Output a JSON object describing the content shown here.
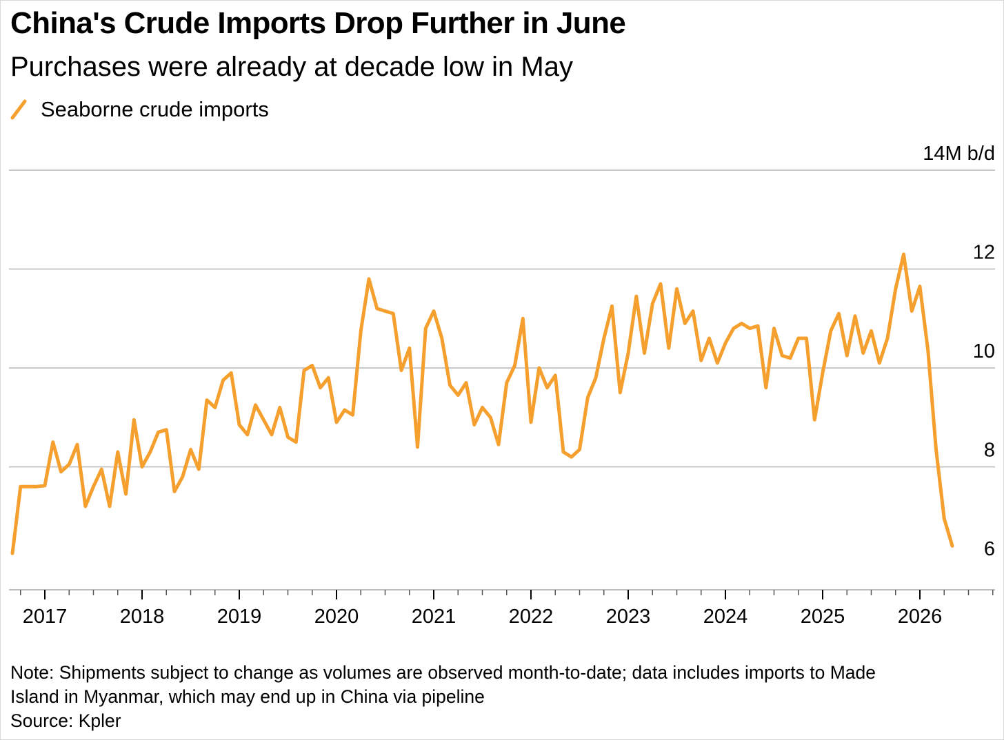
{
  "chart_data": {
    "type": "line",
    "title": "China's Crude Imports Drop Further in June",
    "subtitle": "Purchases were already at decade low in May",
    "unit_label": "14M b/d",
    "ylim": [
      5.7,
      14
    ],
    "yticks": [
      6,
      8,
      10,
      12,
      14
    ],
    "ytick_labels": [
      "6",
      "8",
      "10",
      "12",
      "14M b/d"
    ],
    "xticks": [
      "2017",
      "2018",
      "2019",
      "2020",
      "2021",
      "2022",
      "2023",
      "2024",
      "2025",
      "2026"
    ],
    "grid": true,
    "legend_placement": "top-left",
    "series": [
      {
        "name": "Seaborne crude imports",
        "color": "#f5a02e",
        "points": [
          [
            "2016-09",
            6.25
          ],
          [
            "2016-10",
            7.6
          ],
          [
            "2016-11",
            7.6
          ],
          [
            "2016-12",
            7.6
          ],
          [
            "2017-01",
            7.62
          ],
          [
            "2017-02",
            8.5
          ],
          [
            "2017-03",
            7.9
          ],
          [
            "2017-04",
            8.05
          ],
          [
            "2017-05",
            8.45
          ],
          [
            "2017-06",
            7.2
          ],
          [
            "2017-07",
            7.6
          ],
          [
            "2017-08",
            7.95
          ],
          [
            "2017-09",
            7.2
          ],
          [
            "2017-10",
            8.3
          ],
          [
            "2017-11",
            7.45
          ],
          [
            "2017-12",
            8.95
          ],
          [
            "2018-01",
            8.0
          ],
          [
            "2018-02",
            8.3
          ],
          [
            "2018-03",
            8.7
          ],
          [
            "2018-04",
            8.75
          ],
          [
            "2018-05",
            7.5
          ],
          [
            "2018-06",
            7.8
          ],
          [
            "2018-07",
            8.35
          ],
          [
            "2018-08",
            7.95
          ],
          [
            "2018-09",
            9.35
          ],
          [
            "2018-10",
            9.2
          ],
          [
            "2018-11",
            9.75
          ],
          [
            "2018-12",
            9.9
          ],
          [
            "2019-01",
            8.85
          ],
          [
            "2019-02",
            8.65
          ],
          [
            "2019-03",
            9.25
          ],
          [
            "2019-04",
            8.95
          ],
          [
            "2019-05",
            8.65
          ],
          [
            "2019-06",
            9.2
          ],
          [
            "2019-07",
            8.6
          ],
          [
            "2019-08",
            8.5
          ],
          [
            "2019-09",
            9.95
          ],
          [
            "2019-10",
            10.05
          ],
          [
            "2019-11",
            9.6
          ],
          [
            "2019-12",
            9.8
          ],
          [
            "2020-01",
            8.9
          ],
          [
            "2020-02",
            9.15
          ],
          [
            "2020-03",
            9.05
          ],
          [
            "2020-04",
            10.75
          ],
          [
            "2020-05",
            11.8
          ],
          [
            "2020-06",
            11.2
          ],
          [
            "2020-07",
            11.15
          ],
          [
            "2020-08",
            11.1
          ],
          [
            "2020-09",
            9.95
          ],
          [
            "2020-10",
            10.4
          ],
          [
            "2020-11",
            8.4
          ],
          [
            "2020-12",
            10.8
          ],
          [
            "2021-01",
            11.15
          ],
          [
            "2021-02",
            10.6
          ],
          [
            "2021-03",
            9.65
          ],
          [
            "2021-04",
            9.45
          ],
          [
            "2021-05",
            9.7
          ],
          [
            "2021-06",
            8.85
          ],
          [
            "2021-07",
            9.2
          ],
          [
            "2021-08",
            9.0
          ],
          [
            "2021-09",
            8.45
          ],
          [
            "2021-10",
            9.7
          ],
          [
            "2021-11",
            10.05
          ],
          [
            "2021-12",
            11.0
          ],
          [
            "2022-01",
            8.9
          ],
          [
            "2022-02",
            10.0
          ],
          [
            "2022-03",
            9.6
          ],
          [
            "2022-04",
            9.85
          ],
          [
            "2022-05",
            8.3
          ],
          [
            "2022-06",
            8.2
          ],
          [
            "2022-07",
            8.35
          ],
          [
            "2022-08",
            9.4
          ],
          [
            "2022-09",
            9.8
          ],
          [
            "2022-10",
            10.6
          ],
          [
            "2022-11",
            11.25
          ],
          [
            "2022-12",
            9.5
          ],
          [
            "2023-01",
            10.3
          ],
          [
            "2023-02",
            11.45
          ],
          [
            "2023-03",
            10.3
          ],
          [
            "2023-04",
            11.3
          ],
          [
            "2023-05",
            11.7
          ],
          [
            "2023-06",
            10.4
          ],
          [
            "2023-07",
            11.6
          ],
          [
            "2023-08",
            10.9
          ],
          [
            "2023-09",
            11.15
          ],
          [
            "2023-10",
            10.15
          ],
          [
            "2023-11",
            10.6
          ],
          [
            "2023-12",
            10.1
          ],
          [
            "2024-01",
            10.5
          ],
          [
            "2024-02",
            10.8
          ],
          [
            "2024-03",
            10.9
          ],
          [
            "2024-04",
            10.8
          ],
          [
            "2024-05",
            10.85
          ],
          [
            "2024-06",
            9.6
          ],
          [
            "2024-07",
            10.8
          ],
          [
            "2024-08",
            10.25
          ],
          [
            "2024-09",
            10.2
          ],
          [
            "2024-10",
            10.6
          ],
          [
            "2024-11",
            10.6
          ],
          [
            "2024-12",
            8.95
          ],
          [
            "2025-01",
            9.9
          ],
          [
            "2025-02",
            10.75
          ],
          [
            "2025-03",
            11.1
          ],
          [
            "2025-04",
            10.25
          ],
          [
            "2025-05",
            11.05
          ],
          [
            "2025-06",
            10.3
          ],
          [
            "2025-07",
            10.75
          ],
          [
            "2025-08",
            10.1
          ],
          [
            "2025-09",
            10.6
          ],
          [
            "2025-10",
            11.6
          ],
          [
            "2025-11",
            12.3
          ],
          [
            "2025-12",
            11.15
          ],
          [
            "2026-01",
            11.65
          ],
          [
            "2026-02",
            10.35
          ],
          [
            "2026-03",
            8.35
          ],
          [
            "2026-04",
            6.95
          ],
          [
            "2026-05",
            6.4
          ]
        ]
      }
    ]
  },
  "notes": {
    "line1": "Note: Shipments subject to change as volumes are observed month-to-date; data includes imports to Made",
    "line2": "Island in Myanmar, which may end up in China via pipeline",
    "source": "Source: Kpler"
  }
}
